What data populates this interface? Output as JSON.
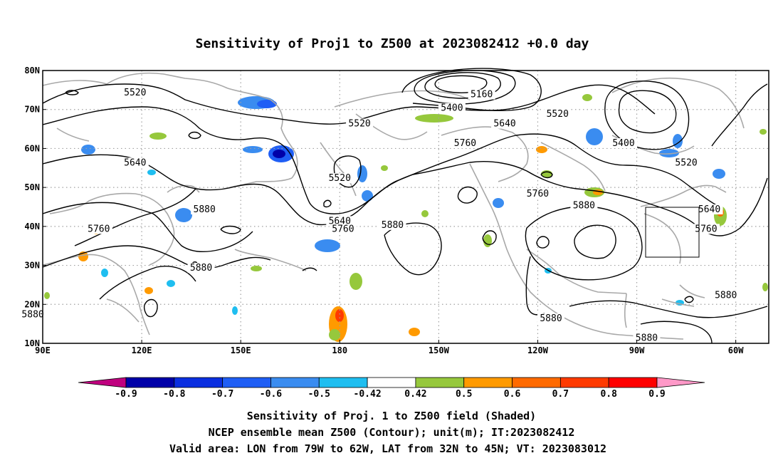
{
  "chart_data": {
    "type": "contour-map",
    "title": "Sensitivity of Proj1 to Z500 at 2023082412 +0.0 day",
    "x_ticks": [
      "90E",
      "120E",
      "150E",
      "180",
      "150W",
      "120W",
      "90W",
      "60W"
    ],
    "y_ticks": [
      "80N",
      "70N",
      "60N",
      "50N",
      "40N",
      "30N",
      "20N",
      "10N"
    ],
    "xlim": [
      90,
      310
    ],
    "ylim": [
      10,
      80
    ],
    "grid": true,
    "colorbar": {
      "levels": [
        "-0.9",
        "-0.8",
        "-0.7",
        "-0.6",
        "-0.5",
        "-0.42",
        "0.42",
        "0.5",
        "0.6",
        "0.7",
        "0.8",
        "0.9"
      ],
      "colors": [
        "#c0007f",
        "#0000a8",
        "#0a2ee0",
        "#1f5ef5",
        "#3a8cf0",
        "#1fbef0",
        "#ffffff",
        "#96c83c",
        "#ff9a00",
        "#ff6a00",
        "#ff3a00",
        "#ff0000",
        "#ff99c8"
      ]
    },
    "contour_labels": [
      {
        "text": "5520",
        "lon": 118,
        "lat": 74
      },
      {
        "text": "5160",
        "lon": 223,
        "lat": 73.5
      },
      {
        "text": "5400",
        "lon": 214,
        "lat": 70
      },
      {
        "text": "5520",
        "lon": 246,
        "lat": 68.5
      },
      {
        "text": "5520",
        "lon": 186,
        "lat": 66
      },
      {
        "text": "5640",
        "lon": 230,
        "lat": 66
      },
      {
        "text": "5400",
        "lon": 266,
        "lat": 61
      },
      {
        "text": "5760",
        "lon": 218,
        "lat": 61
      },
      {
        "text": "5640",
        "lon": 118,
        "lat": 56
      },
      {
        "text": "5520",
        "lon": 180,
        "lat": 52
      },
      {
        "text": "5520",
        "lon": 285,
        "lat": 56
      },
      {
        "text": "5760",
        "lon": 240,
        "lat": 48
      },
      {
        "text": "5880",
        "lon": 139,
        "lat": 44
      },
      {
        "text": "5640",
        "lon": 180,
        "lat": 41
      },
      {
        "text": "5880",
        "lon": 254,
        "lat": 45
      },
      {
        "text": "5640",
        "lon": 292,
        "lat": 44
      },
      {
        "text": "5760",
        "lon": 107,
        "lat": 39
      },
      {
        "text": "5760",
        "lon": 181,
        "lat": 39
      },
      {
        "text": "5880",
        "lon": 196,
        "lat": 40
      },
      {
        "text": "5760",
        "lon": 291,
        "lat": 39
      },
      {
        "text": "5880",
        "lon": 138,
        "lat": 29
      },
      {
        "text": "5880",
        "lon": 297,
        "lat": 22
      },
      {
        "text": "5880",
        "lon": 87,
        "lat": 17
      },
      {
        "text": "5880",
        "lon": 244,
        "lat": 16
      },
      {
        "text": "5880",
        "lon": 273,
        "lat": 11
      }
    ],
    "valid_area": {
      "lon": [
        -79,
        -62
      ],
      "lat": [
        32,
        45
      ]
    }
  },
  "footer": {
    "line1": "Sensitivity of Proj. 1 to Z500 field (Shaded)",
    "line2": "NCEP ensemble mean Z500 (Contour); unit(m); IT:2023082412",
    "line3": "Valid area: LON from 79W to 62W, LAT from 32N to 45N; VT: 2023083012"
  }
}
